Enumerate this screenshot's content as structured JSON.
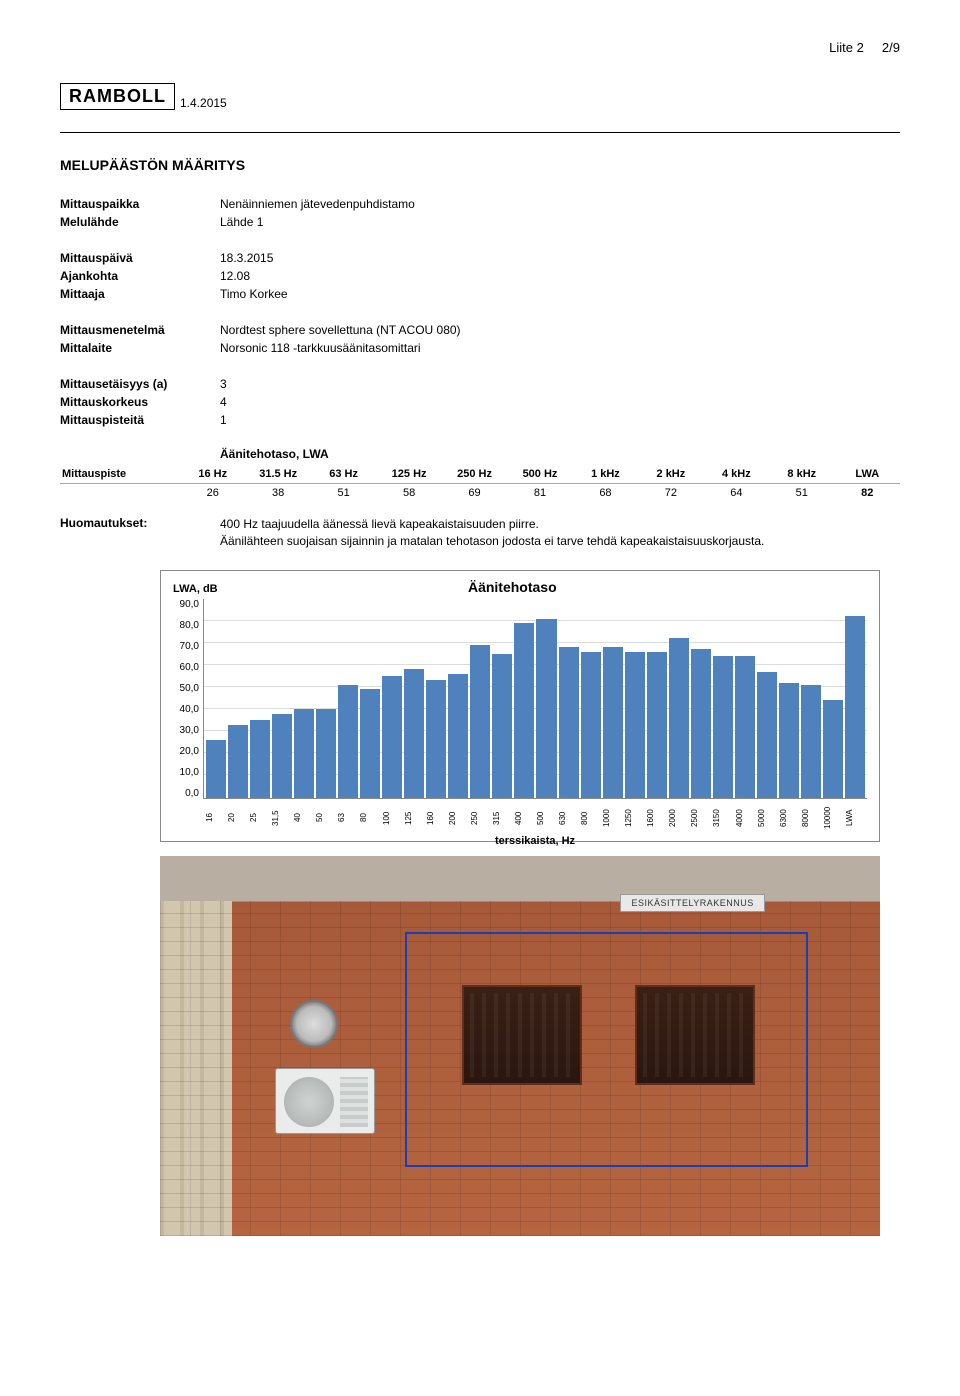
{
  "header": {
    "page_label": "Liite 2",
    "page_num": "2/9"
  },
  "logo_text": "RAMBOLL",
  "top_date": "1.4.2015",
  "doc_title": "MELUPÄÄSTÖN MÄÄRITYS",
  "block1": [
    {
      "k": "Mittauspaikka",
      "v": "Nenäinniemen jätevedenpuhdistamo"
    },
    {
      "k": "Melulähde",
      "v": "Lähde 1"
    }
  ],
  "block2": [
    {
      "k": "Mittauspäivä",
      "v": "18.3.2015"
    },
    {
      "k": "Ajankohta",
      "v": "12.08"
    },
    {
      "k": "Mittaaja",
      "v": "Timo Korkee"
    }
  ],
  "block3": [
    {
      "k": "Mittausmenetelmä",
      "v": "Nordtest sphere sovellettuna (NT ACOU 080)"
    },
    {
      "k": "Mittalaite",
      "v": "Norsonic 118 -tarkkuusäänitasomittari"
    }
  ],
  "block4": [
    {
      "k": "Mittausetäisyys (a)",
      "v": "3"
    },
    {
      "k": "Mittauskorkeus",
      "v": "4"
    },
    {
      "k": "Mittauspisteitä",
      "v": "1"
    }
  ],
  "table": {
    "caption": "Äänitehotaso, LWA",
    "row_label": "Mittauspiste",
    "headers": [
      "16 Hz",
      "31.5 Hz",
      "63 Hz",
      "125 Hz",
      "250 Hz",
      "500 Hz",
      "1 kHz",
      "2 kHz",
      "4 kHz",
      "8 kHz",
      "LWA"
    ],
    "values": [
      "26",
      "38",
      "51",
      "58",
      "69",
      "81",
      "68",
      "72",
      "64",
      "51",
      "82"
    ]
  },
  "notes": {
    "key": "Huomautukset:",
    "lines": [
      "400 Hz taajuudella äänessä lievä kapeakaistaisuuden piirre.",
      "Äänilähteen suojaisan sijainnin ja matalan tehotason jodosta ei tarve tehdä kapeakaistaisuuskorjausta."
    ]
  },
  "chart": {
    "type": "bar",
    "title": "Äänitehotaso",
    "y_label": "LWA, dB",
    "x_label": "terssikaista, Hz",
    "ylim": [
      0,
      90
    ],
    "ytick_step": 10,
    "yticks": [
      "90,0",
      "80,0",
      "70,0",
      "60,0",
      "50,0",
      "40,0",
      "30,0",
      "20,0",
      "10,0",
      "0,0"
    ],
    "bar_color": "#4f81bd",
    "grid_color": "#dddddd",
    "border_color": "#888888",
    "background_color": "#ffffff",
    "categories": [
      "16",
      "20",
      "25",
      "31,5",
      "40",
      "50",
      "63",
      "80",
      "100",
      "125",
      "160",
      "200",
      "250",
      "315",
      "400",
      "500",
      "630",
      "800",
      "1000",
      "1250",
      "1600",
      "2000",
      "2500",
      "3150",
      "4000",
      "5000",
      "6300",
      "8000",
      "10000",
      "LWA"
    ],
    "values": [
      26,
      33,
      35,
      38,
      40,
      40,
      51,
      49,
      55,
      58,
      53,
      56,
      69,
      65,
      79,
      81,
      68,
      66,
      68,
      66,
      66,
      72,
      67,
      64,
      64,
      57,
      52,
      51,
      44,
      82
    ]
  },
  "photo": {
    "sign_text": "ESIKÄSITTELYRAKENNUS",
    "brick_color": "#a75a3a",
    "highlight_rect_color": "#1a3fb0",
    "has_ac_unit": true,
    "has_round_vent": true,
    "vent_count": 2
  }
}
